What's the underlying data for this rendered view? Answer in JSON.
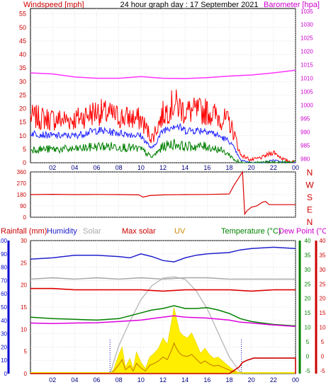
{
  "chart_data": [
    {
      "type": "line",
      "title": "24 hour graph day : 17 September 2021",
      "left_axis_label": "Windspeed [mph]",
      "right_axis_label": "Barometer [hpa]",
      "x_ticks": [
        "02",
        "04",
        "06",
        "08",
        "10",
        "12",
        "14",
        "16",
        "18",
        "20",
        "22",
        "00"
      ],
      "y_left_ticks": [
        0,
        5,
        10,
        15,
        20,
        25,
        30,
        35,
        40,
        45,
        50,
        55
      ],
      "y_left_range": [
        0,
        57
      ],
      "y_right_ticks": [
        980,
        985,
        990,
        995,
        1000,
        1005,
        1010,
        1015,
        1020,
        1025,
        1030,
        1035
      ],
      "y_right_range": [
        978.5,
        1036
      ],
      "colors": {
        "gust": "#ff0000",
        "average": "#2020ff",
        "min": "#008000",
        "barometer": "#ff33ff"
      },
      "series": [
        {
          "axis": "right",
          "x": [
            0,
            2,
            4,
            6,
            8,
            10,
            12,
            14,
            16,
            18,
            20,
            22,
            24
          ],
          "values": [
            1012.0,
            1011.6,
            1010.5,
            1010.0,
            1010.0,
            1010.6,
            1010.0,
            1009.9,
            1010.2,
            1010.8,
            1011.2,
            1012.0,
            1013.0
          ]
        },
        {
          "x": [
            0,
            2,
            4,
            6,
            8,
            10,
            11,
            12,
            13,
            14,
            16,
            17,
            18,
            18.5,
            19,
            20,
            21,
            22,
            23,
            24
          ],
          "values": [
            17,
            16,
            16,
            19,
            17,
            16,
            9,
            18,
            22,
            19,
            19,
            17,
            15,
            10,
            3,
            1,
            2,
            4,
            1,
            0
          ]
        },
        {
          "x": [
            0,
            2,
            4,
            6,
            8,
            10,
            11,
            12,
            13,
            14,
            16,
            17,
            18,
            18.5,
            19,
            20,
            21,
            22,
            23,
            24
          ],
          "values": [
            11,
            10,
            10,
            12,
            11,
            10,
            5,
            12,
            14,
            12,
            12,
            10,
            8,
            5,
            1,
            0,
            0,
            1,
            0,
            0
          ]
        },
        {
          "x": [
            0,
            2,
            4,
            6,
            8,
            10,
            11,
            12,
            13,
            14,
            16,
            17,
            18,
            18.5,
            19,
            20,
            21,
            22,
            23,
            24
          ],
          "values": [
            5,
            5,
            5,
            6,
            6,
            5,
            2,
            6,
            7,
            6,
            6,
            5,
            3,
            1,
            0,
            0,
            0,
            0,
            0,
            0
          ]
        }
      ]
    },
    {
      "type": "line",
      "direction_labels": [
        "N",
        "W",
        "S",
        "E",
        "N"
      ],
      "y_ticks": [
        0,
        90,
        180,
        270,
        360
      ],
      "y_range": [
        0,
        360
      ],
      "x_ticks": [
        "02",
        "04",
        "06",
        "08",
        "10",
        "12",
        "14",
        "16",
        "18",
        "20",
        "22",
        "00"
      ],
      "colors": {
        "direction": "#dd0000"
      },
      "series": [
        {
          "x": [
            0,
            2,
            4,
            6,
            8,
            9.8,
            10.2,
            10.8,
            12,
            14,
            16,
            18,
            18.4,
            19.2,
            19.4,
            19.6,
            20,
            20.5,
            21,
            21.3,
            21.6,
            22,
            22.5,
            24
          ],
          "values": [
            180,
            182,
            180,
            181,
            180,
            178,
            160,
            172,
            178,
            180,
            181,
            185,
            250,
            360,
            25,
            50,
            80,
            90,
            120,
            125,
            100,
            100,
            100,
            100
          ]
        }
      ]
    },
    {
      "type": "line",
      "legend": [
        "Rainfall (mm)",
        "Humidity",
        "Solar",
        "Max solar",
        "UV",
        "Temperature (°C)",
        "Dew Point (°C)"
      ],
      "rain_ticks": [
        0,
        5,
        10,
        15,
        20,
        25,
        30
      ],
      "rain_range": [
        0,
        30
      ],
      "hum_ticks": [
        0,
        10,
        20,
        30,
        40,
        50,
        60,
        70,
        80,
        90,
        100
      ],
      "hum_range": [
        0,
        100
      ],
      "temp_ticks": [
        -5,
        0,
        5,
        10,
        15,
        20,
        25,
        30,
        35,
        40
      ],
      "temp_range": [
        -6,
        40
      ],
      "x_ticks": [
        "02",
        "04",
        "06",
        "08",
        "10",
        "12",
        "14",
        "16",
        "18",
        "20",
        "22",
        "00"
      ],
      "colors": {
        "rain": "#cc0000",
        "humidity": "#2020cc",
        "solar": "#aaaaaa",
        "max_solar": "#dd0000",
        "uv": "#f0e000",
        "temperature": "#008000",
        "dew_point": "#dd00dd"
      },
      "series": [
        {
          "name": "Humidity",
          "x": [
            0,
            2,
            4,
            6,
            8,
            9,
            10,
            11,
            12,
            13,
            14,
            15,
            16,
            18,
            19,
            20,
            22,
            24
          ],
          "values": [
            86,
            87,
            89,
            89,
            88,
            87,
            90,
            88,
            85,
            84,
            87,
            89,
            90,
            91,
            93,
            94,
            95,
            94
          ]
        },
        {
          "name": "Solar",
          "x": [
            0,
            2,
            4,
            6,
            8,
            10,
            12,
            14,
            16,
            18,
            20,
            22,
            24
          ],
          "values": [
            71,
            72,
            71,
            72,
            71,
            72,
            71,
            72,
            72,
            71,
            71,
            71,
            71
          ]
        },
        {
          "name": "Max solar",
          "x": [
            0,
            2,
            4,
            6,
            8,
            10,
            12,
            14,
            16,
            18,
            20,
            22,
            24
          ],
          "values": [
            64,
            64,
            63,
            63,
            63,
            63,
            62,
            63,
            63,
            63,
            62,
            63,
            63
          ]
        },
        {
          "name": "Temperature (°C)",
          "x": [
            0,
            2,
            4,
            6,
            8,
            9,
            10,
            11,
            12,
            13,
            14,
            15,
            16,
            17,
            18,
            19,
            20,
            21,
            22,
            24
          ],
          "values": [
            13.5,
            13,
            12.8,
            12.5,
            13,
            14,
            15,
            16,
            16.5,
            17.5,
            16.5,
            16.5,
            16.8,
            16,
            14.8,
            13,
            12,
            11.5,
            11,
            10.5
          ]
        },
        {
          "name": "Dew Point (°C)",
          "x": [
            0,
            2,
            4,
            6,
            8,
            10,
            11,
            12,
            13,
            14,
            16,
            18,
            19,
            20,
            22,
            24
          ],
          "values": [
            11.5,
            11.3,
            11.5,
            11.6,
            12,
            12.5,
            13,
            13.5,
            14,
            13.5,
            13.2,
            12.5,
            11.8,
            11.5,
            10.8,
            10.3
          ]
        },
        {
          "name": "Max solar",
          "x": [
            7.2,
            8,
            9,
            10,
            11,
            12,
            13,
            14,
            15,
            16,
            17,
            18,
            19.1
          ],
          "values": [
            0,
            220,
            410,
            580,
            690,
            750,
            760,
            740,
            650,
            510,
            320,
            130,
            0
          ]
        },
        {
          "name": "UV",
          "x": [
            7.2,
            7.5,
            8,
            8.3,
            8.6,
            9,
            9.3,
            9.6,
            10,
            10.4,
            10.8,
            11.2,
            11.6,
            12,
            12.4,
            12.8,
            13,
            13.2,
            13.5,
            13.8,
            14.2,
            14.6,
            15,
            15.4,
            15.8,
            16.2,
            16.6,
            17,
            17.4,
            17.8,
            18.2,
            18.6,
            19
          ],
          "values": [
            0,
            30,
            150,
            210,
            50,
            120,
            40,
            170,
            90,
            40,
            130,
            160,
            200,
            280,
            230,
            420,
            520,
            440,
            330,
            300,
            280,
            320,
            240,
            160,
            200,
            150,
            120,
            130,
            100,
            70,
            40,
            20,
            0
          ]
        },
        {
          "name": "Solar",
          "x": [
            7.2,
            7.5,
            8,
            8.3,
            8.6,
            9,
            9.3,
            9.6,
            10,
            10.4,
            10.8,
            11.2,
            11.6,
            12,
            12.4,
            12.8,
            13,
            13.2,
            13.5,
            13.8,
            14.2,
            14.6,
            15,
            15.4,
            15.8,
            16.2,
            16.6,
            17,
            17.4,
            17.8,
            18.2,
            18.6,
            19
          ],
          "values": [
            0,
            15,
            70,
            110,
            30,
            60,
            20,
            80,
            45,
            20,
            65,
            80,
            100,
            130,
            110,
            190,
            240,
            200,
            160,
            140,
            135,
            150,
            115,
            80,
            100,
            75,
            60,
            65,
            50,
            35,
            20,
            10,
            0
          ]
        },
        {
          "name": "Rainfall (mm)",
          "x": [
            0,
            18,
            18.3,
            18.6,
            18.9,
            19.2,
            19.6,
            20.2,
            24
          ],
          "values": [
            0,
            0,
            0.5,
            1,
            1.5,
            2.5,
            3,
            3.5,
            3.5
          ]
        }
      ]
    }
  ]
}
